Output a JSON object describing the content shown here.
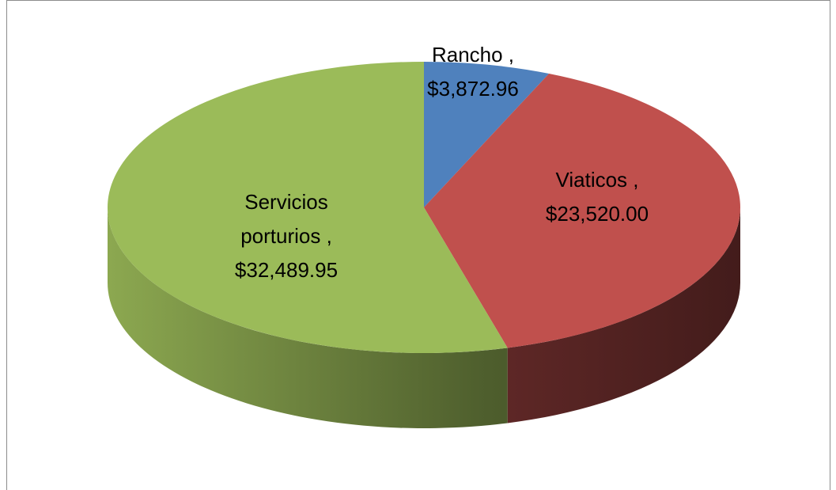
{
  "chart_data": {
    "type": "pie",
    "categories": [
      "Rancho",
      "Viaticos",
      "Servicios porturios"
    ],
    "values": [
      3872.96,
      23520.0,
      32489.95
    ],
    "value_labels": [
      "$3,872.96",
      "$23,520.00",
      "$32,489.95"
    ],
    "separator": " ,",
    "colors": [
      "#4f81bd",
      "#c0504d",
      "#9bbb59"
    ]
  }
}
